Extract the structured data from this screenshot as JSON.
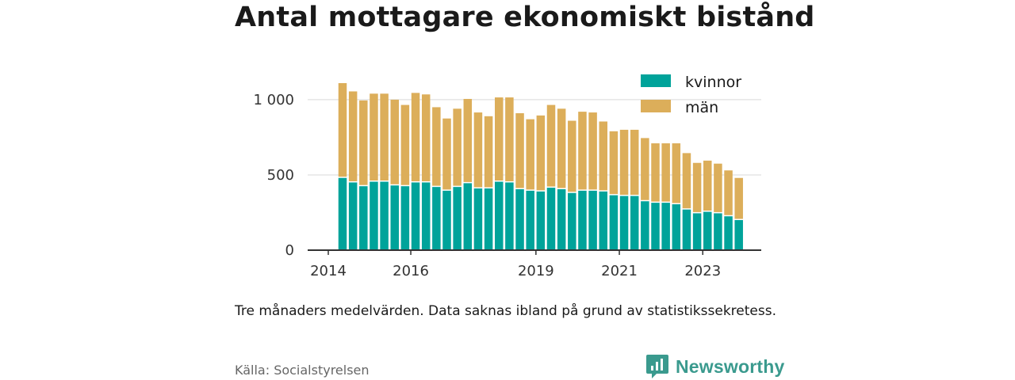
{
  "chart_data": {
    "type": "bar",
    "stacked": true,
    "title": "Antal mottagare ekonomiskt bistånd",
    "note": "Tre månaders medelvärden. Data saknas ibland på grund av statistikssekretess.",
    "source": "Källa: Socialstyrelsen",
    "ylim": [
      0,
      1150
    ],
    "yticks": [
      0,
      500,
      1000
    ],
    "ytick_labels": [
      "0",
      "500",
      "1 000"
    ],
    "xticks": [
      {
        "label": "2014",
        "at": 0
      },
      {
        "label": "2016",
        "at": 7
      },
      {
        "label": "2019",
        "at": 19
      },
      {
        "label": "2021",
        "at": 27
      },
      {
        "label": "2023",
        "at": 35
      }
    ],
    "grid": true,
    "legend_position": "top-right",
    "series": [
      {
        "name": "kvinnor",
        "color": "#00a39a",
        "values": [
          480,
          450,
          425,
          455,
          455,
          430,
          425,
          450,
          450,
          420,
          395,
          420,
          445,
          410,
          410,
          455,
          450,
          405,
          395,
          390,
          415,
          405,
          380,
          395,
          395,
          390,
          365,
          360,
          360,
          325,
          315,
          315,
          305,
          270,
          245,
          255,
          245,
          225,
          200
        ]
      },
      {
        "name": "män",
        "color": "#dcae5a",
        "values": [
          630,
          605,
          570,
          585,
          585,
          570,
          540,
          595,
          585,
          530,
          480,
          520,
          560,
          505,
          480,
          560,
          565,
          505,
          475,
          505,
          550,
          535,
          480,
          525,
          520,
          465,
          425,
          440,
          440,
          420,
          395,
          395,
          405,
          375,
          335,
          340,
          330,
          305,
          280
        ]
      }
    ]
  },
  "brand": {
    "name": "Newsworthy",
    "color": "#3a9a8e"
  }
}
